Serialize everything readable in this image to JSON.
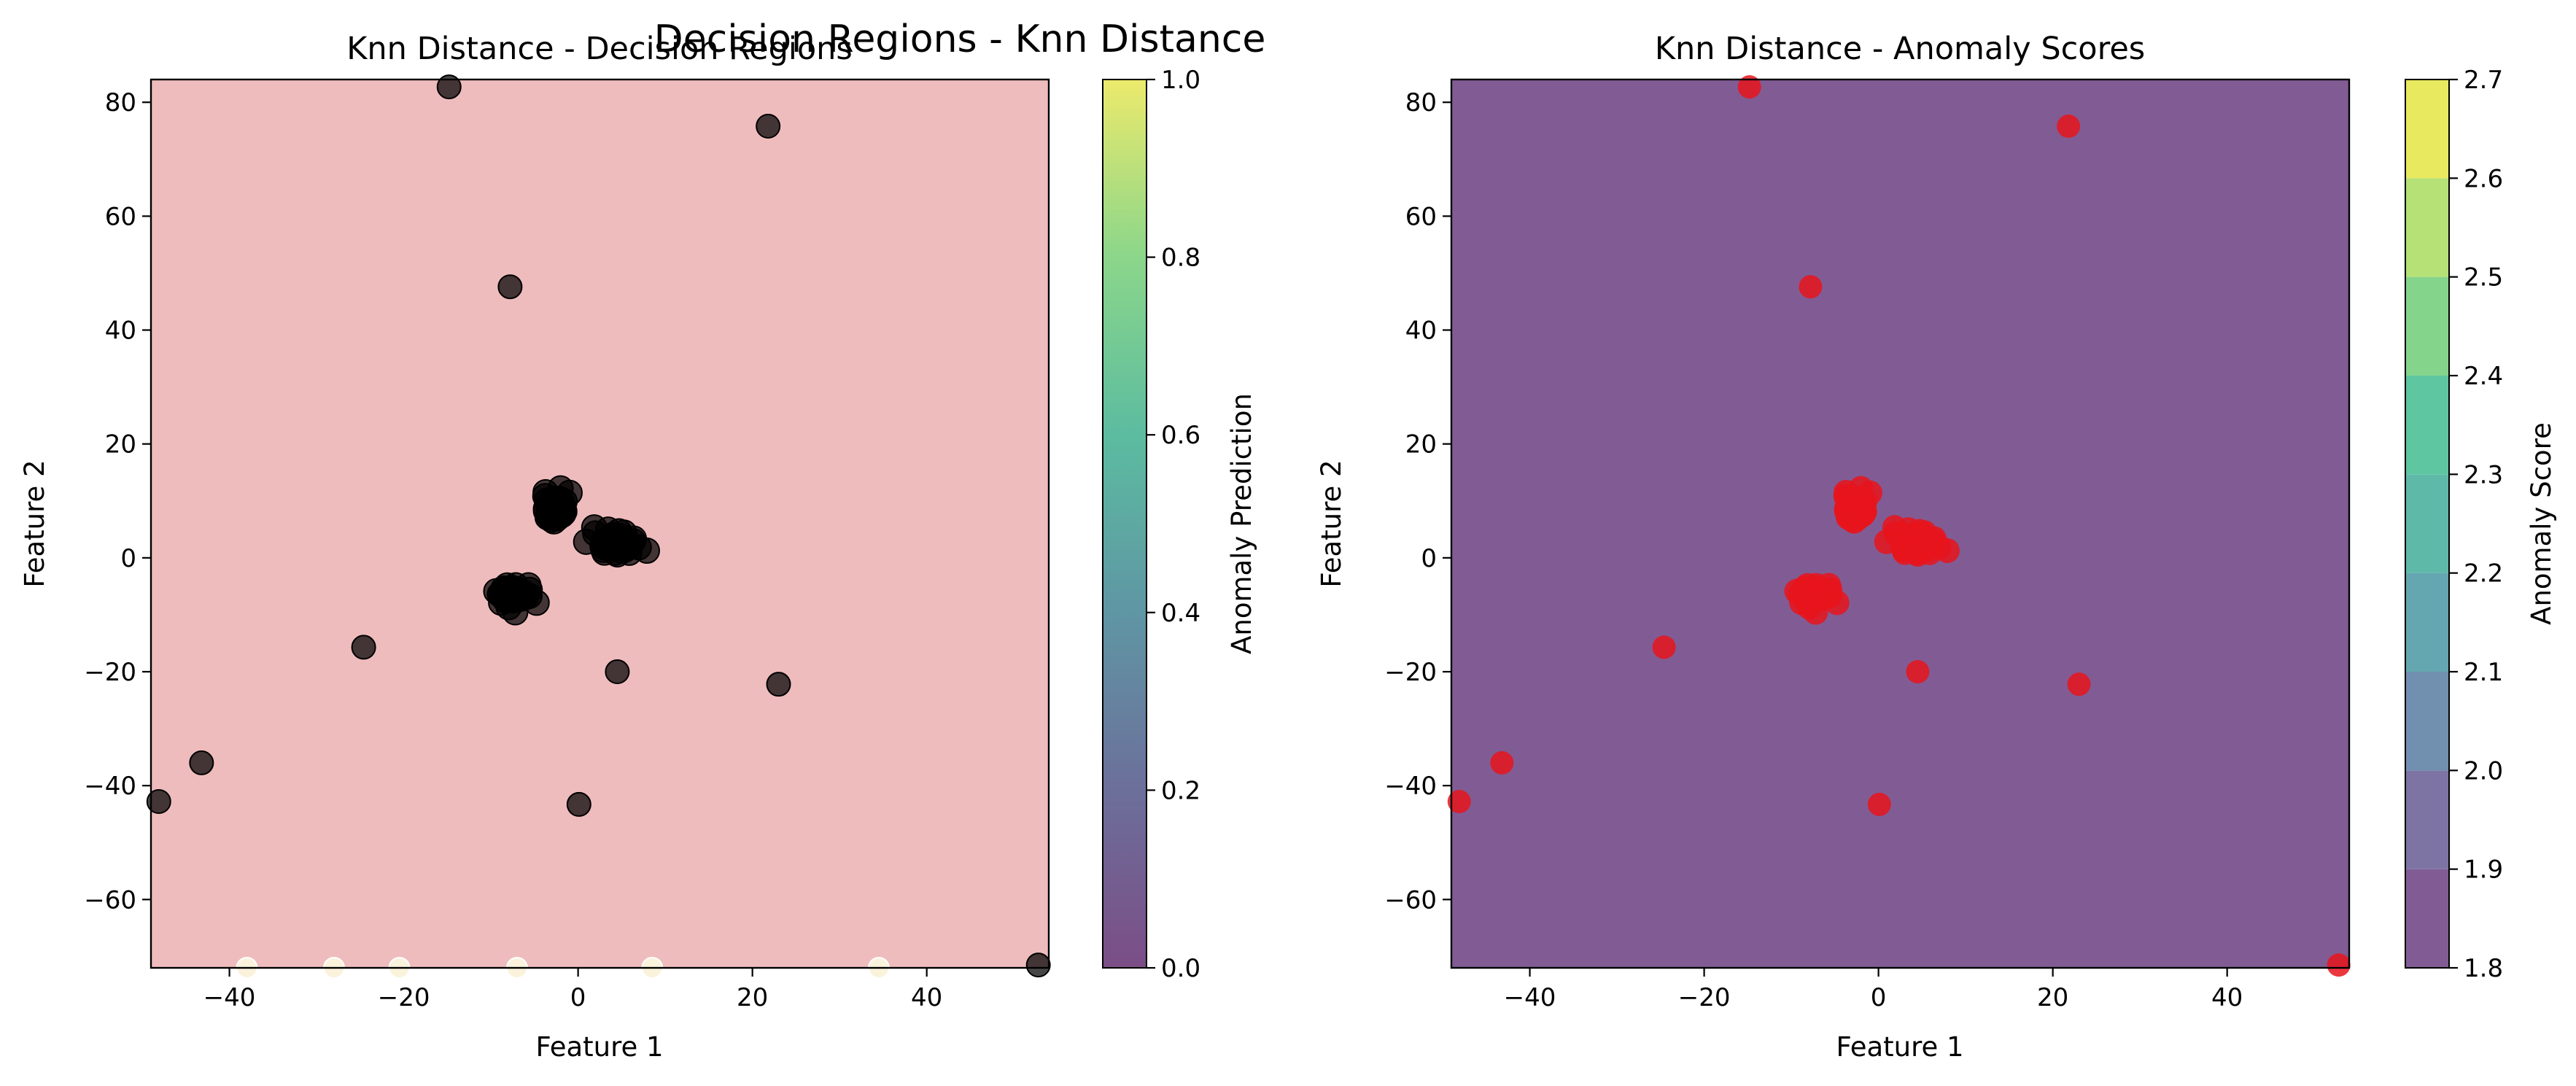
{
  "figure": {
    "suptitle": "Decision Regions - Knn Distance"
  },
  "chart_data": [
    {
      "type": "scatter",
      "title": "Knn Distance - Decision Regions",
      "xlabel": "Feature 1",
      "ylabel": "Feature 2",
      "xlim": [
        -49,
        54
      ],
      "ylim": [
        -72,
        84
      ],
      "xticks": [
        -40,
        -20,
        0,
        20,
        40
      ],
      "xtick_labels": [
        "−40",
        "−20",
        "0",
        "20",
        "40"
      ],
      "yticks": [
        -60,
        -40,
        -20,
        0,
        20,
        40,
        60,
        80
      ],
      "ytick_labels": [
        "−60",
        "−40",
        "−20",
        "0",
        "20",
        "40",
        "60",
        "80"
      ],
      "background_region": {
        "prediction": 0,
        "color": "#efbcbd"
      },
      "point_color": "#000000",
      "edge_points_color": "#fbf2dc",
      "edge_points": [
        {
          "x": -38,
          "y": -72
        },
        {
          "x": -28,
          "y": -72
        },
        {
          "x": -20.5,
          "y": -72
        },
        {
          "x": -7,
          "y": -72
        },
        {
          "x": 8.5,
          "y": -72
        },
        {
          "x": 34.5,
          "y": -72
        }
      ],
      "points": [
        {
          "x": -14.8,
          "y": 82.7
        },
        {
          "x": 21.8,
          "y": 75.8
        },
        {
          "x": -7.8,
          "y": 47.6
        },
        {
          "x": -24.6,
          "y": -15.7
        },
        {
          "x": 4.5,
          "y": -20
        },
        {
          "x": 23,
          "y": -22.2
        },
        {
          "x": -43.2,
          "y": -36
        },
        {
          "x": -48.1,
          "y": -42.8
        },
        {
          "x": 0.1,
          "y": -43.3
        },
        {
          "x": 52.8,
          "y": -71.5
        }
      ],
      "clusters": [
        {
          "center_x": -2.5,
          "center_y": 9,
          "count": 40,
          "spread_x": 1.8,
          "spread_y": 2.2
        },
        {
          "center_x": 4.2,
          "center_y": 2.3,
          "count": 40,
          "spread_x": 2.4,
          "spread_y": 1.8
        },
        {
          "center_x": -7.3,
          "center_y": -6.5,
          "count": 40,
          "spread_x": 1.8,
          "spread_y": 1.9
        }
      ],
      "colorbar": {
        "label": "Anomaly Prediction",
        "min": 0.0,
        "max": 1.0,
        "ticks": [
          0.0,
          0.2,
          0.4,
          0.6,
          0.8,
          1.0
        ],
        "tick_labels": [
          "0.0",
          "0.2",
          "0.4",
          "0.6",
          "0.8",
          "1.0"
        ],
        "colors": [
          "#7b4d86",
          "#6c6f9a",
          "#5f96a4",
          "#5cbca0",
          "#8bd68a",
          "#ecea6c"
        ]
      }
    },
    {
      "type": "heatmap",
      "title": "Knn Distance - Anomaly Scores",
      "xlabel": "Feature 1",
      "ylabel": "Feature 2",
      "xlim": [
        -49,
        54
      ],
      "ylim": [
        -72,
        84
      ],
      "xticks": [
        -40,
        -20,
        0,
        20,
        40
      ],
      "xtick_labels": [
        "−40",
        "−20",
        "0",
        "20",
        "40"
      ],
      "yticks": [
        -60,
        -40,
        -20,
        0,
        20,
        40,
        60,
        80
      ],
      "ytick_labels": [
        "−60",
        "−40",
        "−20",
        "0",
        "20",
        "40",
        "60",
        "80"
      ],
      "background_score_level": 1.8,
      "background_color": "#815c94",
      "point_color": "#e8141c",
      "points": [
        {
          "x": -14.8,
          "y": 82.7
        },
        {
          "x": 21.8,
          "y": 75.8
        },
        {
          "x": -7.8,
          "y": 47.6
        },
        {
          "x": -24.6,
          "y": -15.7
        },
        {
          "x": 4.5,
          "y": -20
        },
        {
          "x": 23,
          "y": -22.2
        },
        {
          "x": -43.2,
          "y": -36
        },
        {
          "x": -48.1,
          "y": -42.8
        },
        {
          "x": 0.1,
          "y": -43.3
        },
        {
          "x": 52.8,
          "y": -71.5
        }
      ],
      "clusters": [
        {
          "center_x": -2.5,
          "center_y": 9,
          "count": 40,
          "spread_x": 1.8,
          "spread_y": 2.2
        },
        {
          "center_x": 4.2,
          "center_y": 2.3,
          "count": 40,
          "spread_x": 2.4,
          "spread_y": 1.8
        },
        {
          "center_x": -7.3,
          "center_y": -6.5,
          "count": 40,
          "spread_x": 1.8,
          "spread_y": 1.9
        }
      ],
      "colorbar": {
        "label": "Anomaly Score",
        "levels": [
          1.8,
          1.9,
          2.0,
          2.1,
          2.2,
          2.3,
          2.4,
          2.5,
          2.6,
          2.7
        ],
        "tick_labels": [
          "1.8",
          "1.9",
          "2.0",
          "2.1",
          "2.2",
          "2.3",
          "2.4",
          "2.5",
          "2.6",
          "2.7"
        ],
        "colors": [
          "#815c94",
          "#7d74a4",
          "#7190b0",
          "#64a7b0",
          "#5fb9a9",
          "#5ec6a0",
          "#85d48c",
          "#b5e176",
          "#e8e95e"
        ]
      }
    }
  ]
}
